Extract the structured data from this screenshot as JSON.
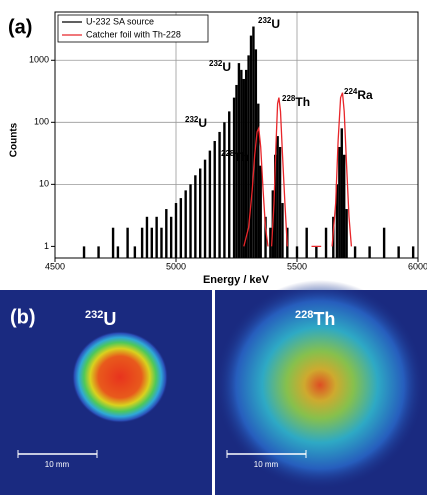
{
  "chart_data": {
    "type": "spectrum",
    "panel_label": "(a)",
    "x_label": "Energy / keV",
    "y_label": "Counts",
    "log_y": true,
    "grid": true,
    "xlim": [
      4500,
      6000
    ],
    "xticks": [
      4500,
      5000,
      5500,
      6000
    ],
    "ylim": [
      0.65,
      6000
    ],
    "yticks": [
      1,
      10,
      100,
      1000
    ],
    "series": [
      {
        "name": "U-232 SA source",
        "color": "#000000",
        "style": "bars",
        "x": [
          4620,
          4680,
          4740,
          4760,
          4800,
          4830,
          4860,
          4880,
          4900,
          4920,
          4940,
          4960,
          4980,
          5000,
          5020,
          5040,
          5060,
          5080,
          5100,
          5120,
          5140,
          5160,
          5180,
          5200,
          5220,
          5240,
          5250,
          5260,
          5270,
          5280,
          5290,
          5300,
          5310,
          5320,
          5330,
          5340,
          5350,
          5370,
          5390,
          5400,
          5410,
          5420,
          5430,
          5440,
          5460,
          5500,
          5540,
          5580,
          5620,
          5650,
          5665,
          5675,
          5685,
          5695,
          5705,
          5740,
          5800,
          5860,
          5920,
          5980
        ],
        "values": [
          1,
          1,
          2,
          1,
          2,
          1,
          2,
          3,
          2,
          3,
          2,
          4,
          3,
          5,
          6,
          8,
          10,
          14,
          18,
          25,
          35,
          50,
          70,
          100,
          150,
          250,
          400,
          900,
          700,
          500,
          700,
          1200,
          2500,
          3500,
          1500,
          200,
          20,
          3,
          2,
          8,
          30,
          60,
          40,
          5,
          2,
          1,
          2,
          1,
          2,
          3,
          10,
          40,
          80,
          30,
          4,
          1,
          1,
          2,
          1,
          1
        ]
      },
      {
        "name": "Catcher foil with Th-228",
        "color": "#e8262a",
        "style": "line",
        "x": [
          5280,
          5300,
          5315,
          5325,
          5335,
          5342,
          5350,
          5360,
          5370,
          5380,
          5390,
          5395,
          5405,
          5413,
          5420,
          5425,
          5432,
          5440,
          5450,
          5460,
          5500,
          5560,
          5600,
          5620,
          5645,
          5660,
          5670,
          5680,
          5688,
          5695,
          5705,
          5715,
          5725
        ],
        "values": [
          1,
          2,
          8,
          30,
          70,
          80,
          40,
          8,
          2,
          1,
          null,
          1,
          5,
          40,
          200,
          250,
          150,
          30,
          5,
          1,
          null,
          1,
          1,
          null,
          1,
          5,
          50,
          250,
          300,
          150,
          20,
          3,
          1
        ]
      }
    ],
    "annotations": [
      {
        "mass": "232",
        "element": "U"
      },
      {
        "mass": "232",
        "element": "U"
      },
      {
        "mass": "232",
        "element": "U"
      },
      {
        "mass": "228",
        "element": "Th"
      },
      {
        "mass": "228",
        "element": "Th"
      },
      {
        "mass": "224",
        "element": "Ra"
      }
    ]
  },
  "panel_b": {
    "label": "(b)",
    "images": [
      {
        "mass": "232",
        "element": "U",
        "scale_bar": "10 mm"
      },
      {
        "mass": "228",
        "element": "Th",
        "scale_bar": "10 mm"
      }
    ]
  }
}
